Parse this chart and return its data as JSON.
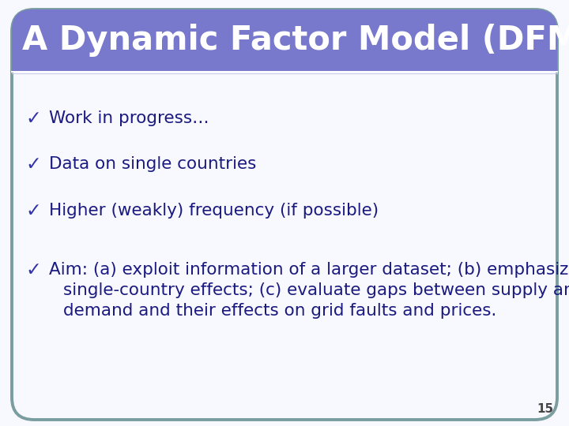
{
  "title": "A Dynamic Factor Model (DFM)",
  "title_bg_color": "#7878CC",
  "title_text_color": "#FFFFFF",
  "slide_bg_color": "#F8F8FF",
  "border_color": "#7A9E9F",
  "text_color": "#1a1a80",
  "check_color": "#3333aa",
  "bullet_items": [
    "Work in progress…",
    "Data on single countries",
    "Higher (weakly) frequency (if possible)",
    "Aim: (a) exploit information of a larger dataset; (b) emphasize\nsingle-country effects; (c) evaluate gaps between supply and\ndemand and their effects on grid faults and prices."
  ],
  "page_number": "15",
  "font_size_title": 30,
  "font_size_body": 15.5,
  "font_size_check": 17,
  "font_size_page": 11
}
